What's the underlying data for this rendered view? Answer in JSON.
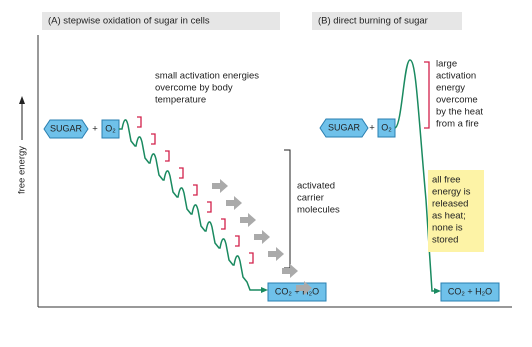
{
  "y_axis_label": "free energy",
  "panel_a": {
    "title": "(A)  stepwise oxidation of sugar in cells",
    "sugar": "SUGAR",
    "plus": "+",
    "oxygen": "O₂",
    "activation_note": [
      "small activation energies",
      "overcome by body",
      "temperature"
    ],
    "carrier_note": [
      "activated",
      "carrier",
      "molecules"
    ],
    "products": "CO₂ + H₂O"
  },
  "panel_b": {
    "title": "(B)  direct burning of sugar",
    "sugar": "SUGAR",
    "plus": "+",
    "oxygen": "O₂",
    "activation_note": [
      "large",
      "activation",
      "energy",
      "overcome",
      "by the heat",
      "from a fire"
    ],
    "heat_note": [
      "all free",
      "energy is",
      "released",
      "as heat;",
      "none is",
      "stored"
    ],
    "products": "CO₂ + H₂O"
  }
}
